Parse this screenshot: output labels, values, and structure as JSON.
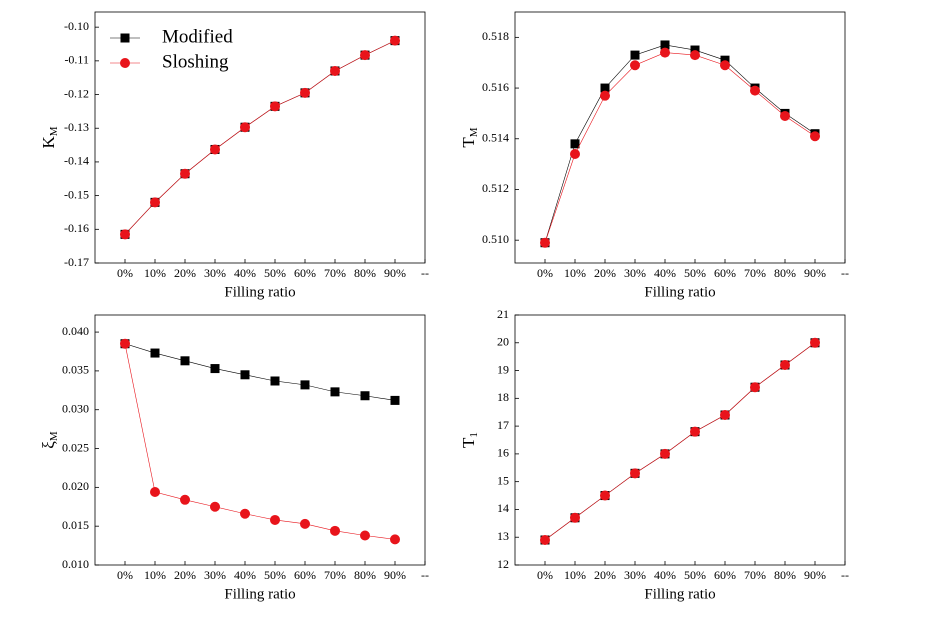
{
  "chart_data": [
    {
      "type": "line",
      "xlabel": "Filling ratio",
      "ylabel": {
        "main": "K",
        "sub": "M"
      },
      "categories": [
        "0%",
        "10%",
        "20%",
        "30%",
        "40%",
        "50%",
        "60%",
        "70%",
        "80%",
        "90%",
        "--"
      ],
      "legend": "upper left",
      "series": [
        {
          "name": "Modified",
          "color": "#000000",
          "marker": "square",
          "values": [
            -0.1615,
            -0.152,
            -0.1435,
            -0.1363,
            -0.1297,
            -0.1235,
            -0.1195,
            -0.113,
            -0.1083,
            -0.104,
            null
          ]
        },
        {
          "name": "Sloshing",
          "color": "#e8141b",
          "marker": "circle",
          "values": [
            -0.1615,
            -0.152,
            -0.1435,
            -0.1363,
            -0.1297,
            -0.1235,
            -0.1195,
            -0.113,
            -0.1083,
            -0.104,
            null
          ]
        }
      ],
      "ylim": [
        -0.17,
        -0.0955
      ],
      "yticks": [
        {
          "value": -0.17,
          "label": "-0.17"
        },
        {
          "value": -0.16,
          "label": "-0.16"
        },
        {
          "value": -0.15,
          "label": "-0.15"
        },
        {
          "value": -0.14,
          "label": "-0.14"
        },
        {
          "value": -0.13,
          "label": "-0.13"
        },
        {
          "value": -0.12,
          "label": "-0.12"
        },
        {
          "value": -0.11,
          "label": "-0.11"
        },
        {
          "value": -0.1,
          "label": "-0.10"
        }
      ]
    },
    {
      "type": "line",
      "xlabel": "Filling ratio",
      "ylabel": {
        "main": "T",
        "sub": "M"
      },
      "categories": [
        "0%",
        "10%",
        "20%",
        "30%",
        "40%",
        "50%",
        "60%",
        "70%",
        "80%",
        "90%",
        "--"
      ],
      "series": [
        {
          "color": "#000000",
          "marker": "square",
          "values": [
            0.5099,
            0.5138,
            0.516,
            0.5173,
            0.5177,
            0.5175,
            0.5171,
            0.516,
            0.515,
            0.5142,
            null
          ]
        },
        {
          "color": "#e8141b",
          "marker": "circle",
          "values": [
            0.5099,
            0.5134,
            0.5157,
            0.5169,
            0.5174,
            0.5173,
            0.5169,
            0.5159,
            0.5149,
            0.5141,
            null
          ]
        }
      ],
      "ylim": [
        0.5091,
        0.519
      ],
      "yticks": [
        {
          "value": 0.51,
          "label": "0.510"
        },
        0.512,
        0.514,
        0.516,
        0.518
      ]
    },
    {
      "type": "line",
      "xlabel": "Filling ratio",
      "ylabel": {
        "main": "ξ",
        "sub": "M"
      },
      "categories": [
        "0%",
        "10%",
        "20%",
        "30%",
        "40%",
        "50%",
        "60%",
        "70%",
        "80%",
        "90%",
        "--"
      ],
      "series": [
        {
          "color": "#000000",
          "marker": "square",
          "values": [
            0.0385,
            0.0373,
            0.0363,
            0.0353,
            0.0345,
            0.0337,
            0.0332,
            0.0323,
            0.0318,
            0.0312,
            null
          ]
        },
        {
          "color": "#e8141b",
          "marker": "circle",
          "values": [
            0.0385,
            0.0194,
            0.0184,
            0.0175,
            0.0166,
            0.0158,
            0.0153,
            0.0144,
            0.0138,
            0.0133,
            null
          ]
        }
      ],
      "ylim": [
        0.01,
        0.0422
      ],
      "yticks": [
        {
          "value": 0.01,
          "label": "0.010"
        },
        0.015,
        {
          "value": 0.02,
          "label": "0.020"
        },
        0.025,
        {
          "value": 0.03,
          "label": "0.030"
        },
        0.035,
        {
          "value": 0.04,
          "label": "0.040"
        }
      ]
    },
    {
      "type": "line",
      "xlabel": "Filling ratio",
      "ylabel": {
        "main": "T",
        "sub": "1"
      },
      "categories": [
        "0%",
        "10%",
        "20%",
        "30%",
        "40%",
        "50%",
        "60%",
        "70%",
        "80%",
        "90%",
        "--"
      ],
      "series": [
        {
          "color": "#000000",
          "marker": "square",
          "values": [
            12.9,
            13.7,
            14.5,
            15.3,
            16.0,
            16.8,
            17.4,
            18.4,
            19.2,
            20.0,
            null
          ]
        },
        {
          "color": "#e8141b",
          "marker": "circle",
          "values": [
            12.9,
            13.7,
            14.5,
            15.3,
            16.0,
            16.8,
            17.4,
            18.4,
            19.2,
            20.0,
            null
          ]
        }
      ],
      "ylim": [
        12,
        21
      ],
      "yticks": [
        12,
        13,
        14,
        15,
        16,
        17,
        18,
        19,
        20,
        21
      ]
    }
  ]
}
